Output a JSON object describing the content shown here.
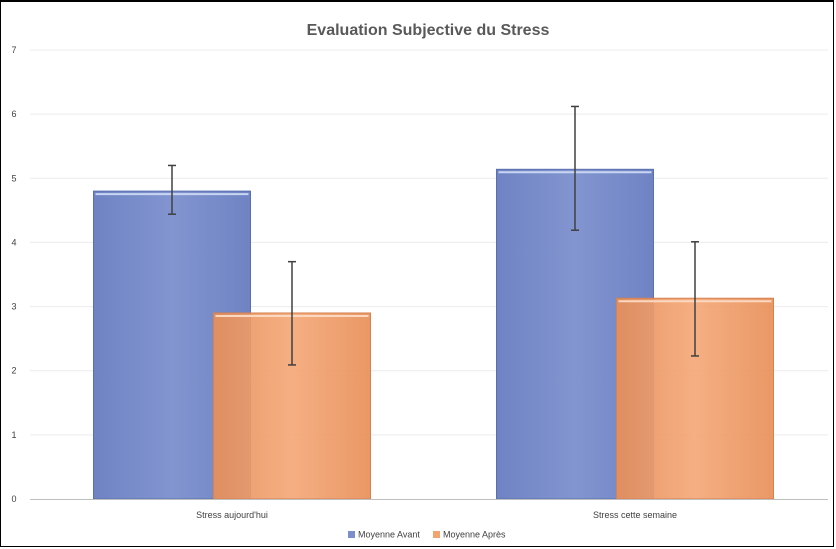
{
  "chart_data": {
    "type": "bar",
    "title": "Evaluation Subjective du Stress",
    "categories": [
      "Stress aujourd'hui",
      "Stress cette semaine"
    ],
    "series": [
      {
        "name": "Moyenne Avant",
        "values": [
          4.8,
          5.14
        ],
        "error_low": [
          4.44,
          4.19
        ],
        "error_high": [
          5.2,
          6.12
        ],
        "color": "#7b8fcb"
      },
      {
        "name": "Moyenne Après",
        "values": [
          2.9,
          3.13
        ],
        "error_low": [
          2.09,
          2.23
        ],
        "error_high": [
          3.7,
          4.01
        ],
        "color": "#f2a470"
      }
    ],
    "yticks": [
      "0",
      "1",
      "2",
      "3",
      "4",
      "5",
      "6",
      "7"
    ],
    "ylim": [
      0,
      7
    ],
    "grid": true,
    "legend_position": "bottom"
  }
}
